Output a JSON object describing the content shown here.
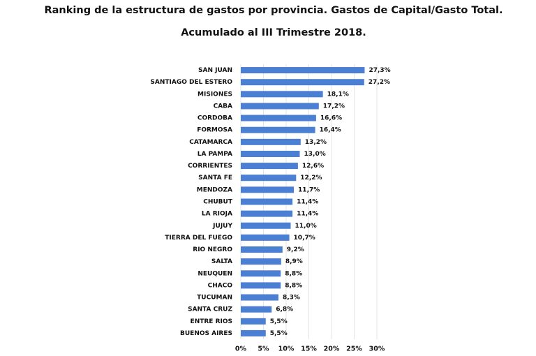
{
  "chart_data": {
    "type": "barh",
    "title": "Ranking de la estructura de gastos por provincia. Gastos de Capital/Gasto Total.",
    "subtitle": "Acumulado al III Trimestre 2018.",
    "categories": [
      "SAN JUAN",
      "SANTIAGO DEL ESTERO",
      "MISIONES",
      "CABA",
      "CORDOBA",
      "FORMOSA",
      "CATAMARCA",
      "LA PAMPA",
      "CORRIENTES",
      "SANTA FE",
      "MENDOZA",
      "CHUBUT",
      "LA RIOJA",
      "JUJUY",
      "TIERRA DEL FUEGO",
      "RIO NEGRO",
      "SALTA",
      "NEUQUEN",
      "CHACO",
      "TUCUMAN",
      "SANTA CRUZ",
      "ENTRE RIOS",
      "BUENOS AIRES"
    ],
    "values": [
      27.3,
      27.2,
      18.1,
      17.2,
      16.6,
      16.4,
      13.2,
      13.0,
      12.6,
      12.2,
      11.7,
      11.4,
      11.4,
      11.0,
      10.7,
      9.2,
      8.9,
      8.8,
      8.8,
      8.3,
      6.8,
      5.5,
      5.5
    ],
    "value_labels": [
      "27,3%",
      "27,2%",
      "18,1%",
      "17,2%",
      "16,6%",
      "16,4%",
      "13,2%",
      "13,0%",
      "12,6%",
      "12,2%",
      "11,7%",
      "11,4%",
      "11,4%",
      "11,0%",
      "10,7%",
      "9,2%",
      "8,9%",
      "8,8%",
      "8,8%",
      "8,3%",
      "6,8%",
      "5,5%",
      "5,5%"
    ],
    "color": "#4a7fd4",
    "xlim": [
      0,
      30
    ],
    "xticks": [
      {
        "value": 0,
        "label": "0%"
      },
      {
        "value": 5,
        "label": "5%"
      },
      {
        "value": 10,
        "label": "10%"
      },
      {
        "value": 15,
        "label": "15%"
      },
      {
        "value": 20,
        "label": "20%"
      },
      {
        "value": 25,
        "label": "25%"
      },
      {
        "value": 30,
        "label": "30%"
      }
    ],
    "grid": true
  }
}
